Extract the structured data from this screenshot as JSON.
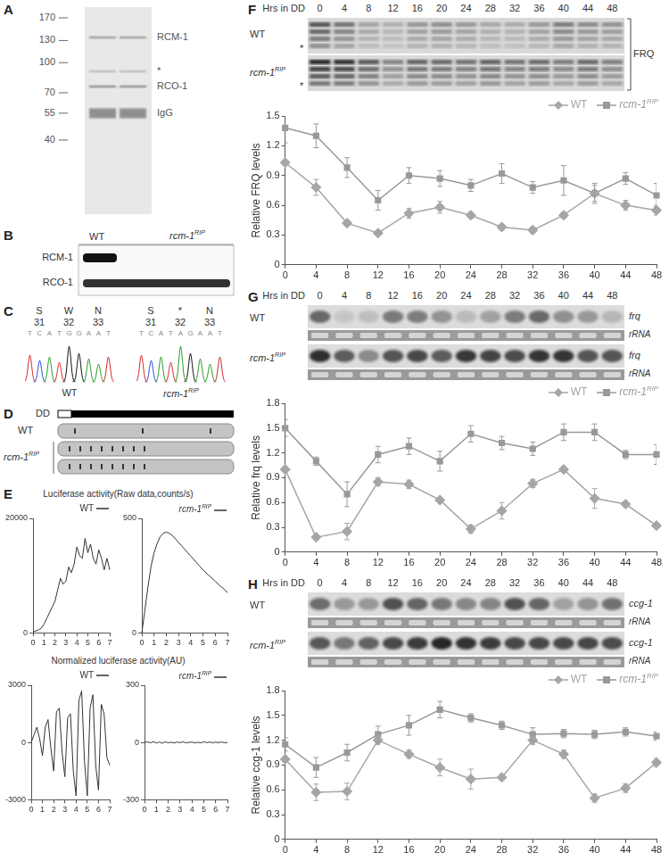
{
  "panels": {
    "A": {
      "label": "A",
      "markers": [
        170,
        130,
        100,
        70,
        55,
        40
      ],
      "bands": [
        "RCM-1",
        "*",
        "RCO-1",
        "IgG"
      ]
    },
    "B": {
      "label": "B",
      "columns": [
        {
          "text": "WT"
        },
        {
          "text": "rcm-1",
          "sup": "RIP"
        }
      ],
      "rows": [
        "RCM-1",
        "RCO-1"
      ]
    },
    "C": {
      "label": "C",
      "traces": [
        {
          "residues": [
            "S",
            "W",
            "N"
          ],
          "positions": [
            31,
            32,
            33
          ],
          "bases": "TCATGGAAT",
          "strain": {
            "text": "WT"
          }
        },
        {
          "residues": [
            "S",
            "*",
            "N"
          ],
          "positions": [
            31,
            32,
            33
          ],
          "bases": "TCATAGAAT",
          "strain": {
            "text": "rcm-1",
            "sup": "RIP"
          }
        }
      ]
    },
    "D": {
      "label": "D",
      "condition": "DD",
      "strains": [
        {
          "text": "WT"
        },
        {
          "text": "rcm-1",
          "sup": "RIP"
        }
      ]
    },
    "E": {
      "label": "E",
      "titles": [
        "Luciferase activity(Raw data,counts/s)",
        "Normalized luciferase activity(AU)"
      ]
    },
    "F": {
      "label": "F",
      "blot": {
        "header": "Hrs in DD",
        "lanes": [
          0,
          4,
          8,
          12,
          16,
          20,
          24,
          28,
          32,
          36,
          40,
          44,
          48
        ],
        "rows": [
          {
            "text": "WT"
          },
          {
            "text": "rcm-1",
            "sup": "RIP"
          }
        ],
        "marker": "*",
        "probe": "FRQ"
      }
    },
    "G": {
      "label": "G",
      "blot": {
        "header": "Hrs in DD",
        "lanes": [
          0,
          4,
          8,
          12,
          16,
          20,
          24,
          28,
          32,
          36,
          40,
          44,
          48
        ],
        "rows": [
          {
            "text": "WT"
          },
          {
            "text": "rcm-1",
            "sup": "RIP"
          }
        ],
        "probe": "frq",
        "loading": "rRNA"
      }
    },
    "H": {
      "label": "H",
      "blot": {
        "header": "Hrs in DD",
        "lanes": [
          0,
          4,
          8,
          12,
          16,
          20,
          24,
          28,
          32,
          36,
          40,
          44,
          48
        ],
        "rows": [
          {
            "text": "WT"
          },
          {
            "text": "rcm-1",
            "sup": "RIP"
          }
        ],
        "probe": "ccg-1",
        "loading": "rRNA"
      }
    }
  },
  "chart_data": [
    {
      "type": "line",
      "legend": "top",
      "grid": false,
      "x": [
        0,
        0.25,
        0.5,
        0.75,
        1,
        1.25,
        1.5,
        1.75,
        2,
        2.25,
        2.5,
        2.75,
        3,
        3.25,
        3.5,
        3.75,
        4,
        4.25,
        4.5,
        4.75,
        5,
        5.25,
        5.5,
        5.75,
        6,
        6.25,
        6.5,
        6.75,
        7
      ],
      "series": [
        {
          "name": "WT",
          "color": "#333333",
          "values": [
            200,
            300,
            500,
            800,
            1500,
            2500,
            3500,
            4500,
            5500,
            7500,
            9500,
            8500,
            9000,
            11500,
            10500,
            12000,
            15000,
            13500,
            13000,
            16500,
            14000,
            15500,
            13000,
            12000,
            14500,
            13000,
            11000,
            13000,
            11000
          ]
        }
      ],
      "xlim": [
        0,
        7
      ],
      "xticks": [
        0,
        1,
        2,
        3,
        4,
        5,
        6,
        7
      ],
      "ylim": [
        0,
        20000
      ],
      "yticks": [
        0,
        20000
      ]
    },
    {
      "type": "line",
      "legend": "top",
      "grid": false,
      "x": [
        0,
        0.25,
        0.5,
        0.75,
        1,
        1.25,
        1.5,
        1.75,
        2,
        2.25,
        2.5,
        2.75,
        3,
        3.25,
        3.5,
        3.75,
        4,
        4.25,
        4.5,
        4.75,
        5,
        5.25,
        5.5,
        5.75,
        6,
        6.25,
        6.5,
        6.75,
        7
      ],
      "series": [
        {
          "name": "rcm-1",
          "name_sup": "RIP",
          "color": "#333333",
          "values": [
            0,
            100,
            200,
            290,
            350,
            390,
            420,
            435,
            440,
            435,
            425,
            410,
            395,
            380,
            365,
            350,
            335,
            320,
            305,
            290,
            275,
            262,
            250,
            238,
            225,
            213,
            200,
            190,
            175
          ]
        }
      ],
      "xlim": [
        0,
        7
      ],
      "xticks": [
        0,
        1,
        2,
        3,
        4,
        5,
        6,
        7
      ],
      "ylim": [
        0,
        500
      ],
      "yticks": [
        0,
        500
      ]
    },
    {
      "type": "line",
      "legend": "top",
      "grid": false,
      "x": [
        0,
        0.25,
        0.5,
        0.75,
        1,
        1.25,
        1.5,
        1.75,
        2,
        2.25,
        2.5,
        2.75,
        3,
        3.25,
        3.5,
        3.75,
        4,
        4.25,
        4.5,
        4.75,
        5,
        5.25,
        5.5,
        5.75,
        6,
        6.25,
        6.5,
        6.75,
        7
      ],
      "series": [
        {
          "name": "WT",
          "color": "#333333",
          "values": [
            0,
            400,
            800,
            200,
            -700,
            800,
            1200,
            -300,
            -1500,
            1600,
            1800,
            -500,
            -1800,
            1300,
            1500,
            -1500,
            -2800,
            2200,
            2700,
            -1000,
            -2800,
            1800,
            2500,
            -1200,
            -2500,
            2000,
            1500,
            -800,
            -1200
          ]
        }
      ],
      "xlim": [
        0,
        7
      ],
      "xticks": [
        0,
        1,
        2,
        3,
        4,
        5,
        6,
        7
      ],
      "ylim": [
        -3000,
        3000
      ],
      "yticks": [
        -3000,
        0,
        3000
      ]
    },
    {
      "type": "line",
      "legend": "top",
      "grid": false,
      "x": [
        0,
        0.25,
        0.5,
        0.75,
        1,
        1.25,
        1.5,
        1.75,
        2,
        2.25,
        2.5,
        2.75,
        3,
        3.25,
        3.5,
        3.75,
        4,
        4.25,
        4.5,
        4.75,
        5,
        5.25,
        5.5,
        5.75,
        6,
        6.25,
        6.5,
        6.75,
        7
      ],
      "series": [
        {
          "name": "rcm-1",
          "name_sup": "RIP",
          "color": "#333333",
          "values": [
            0,
            3,
            -2,
            4,
            -3,
            2,
            -4,
            3,
            -2,
            1,
            -3,
            2,
            -1,
            3,
            -2,
            0,
            2,
            -3,
            1,
            -2,
            3,
            -1,
            2,
            -2,
            1,
            -1,
            2,
            -2,
            0
          ]
        }
      ],
      "xlim": [
        0,
        7
      ],
      "xticks": [
        0,
        1,
        2,
        3,
        4,
        5,
        6,
        7
      ],
      "ylim": [
        -300,
        300
      ],
      "yticks": [
        -300,
        0,
        300
      ]
    },
    {
      "type": "line",
      "legend": "top",
      "grid": false,
      "y_label": "Relative FRQ levels",
      "x": [
        0,
        4,
        8,
        12,
        16,
        20,
        24,
        28,
        32,
        36,
        40,
        44,
        48
      ],
      "series": [
        {
          "name": "WT",
          "color": "#a6a6a6",
          "marker": "diamond",
          "values": [
            1.03,
            0.78,
            0.42,
            0.32,
            0.52,
            0.58,
            0.5,
            0.38,
            0.35,
            0.5,
            0.72,
            0.6,
            0.55
          ],
          "errors": [
            0,
            0.08,
            0.03,
            0.02,
            0.05,
            0.06,
            0.03,
            0.03,
            0.03,
            0.03,
            0.08,
            0.05,
            0.05
          ]
        },
        {
          "name": "rcm-1",
          "name_sup": "RIP",
          "color": "#999999",
          "marker": "square",
          "values": [
            1.38,
            1.3,
            0.98,
            0.65,
            0.9,
            0.87,
            0.8,
            0.92,
            0.78,
            0.85,
            0.72,
            0.87,
            0.7
          ],
          "errors": [
            0.15,
            0.12,
            0.1,
            0.1,
            0.08,
            0.08,
            0.06,
            0.1,
            0.06,
            0.15,
            0.1,
            0.06,
            0.12
          ]
        }
      ],
      "xlim": [
        0,
        48
      ],
      "xticks": [
        0,
        4,
        8,
        12,
        16,
        20,
        24,
        28,
        32,
        36,
        40,
        44,
        48
      ],
      "ylim": [
        0,
        1.5
      ],
      "yticks": [
        0,
        0.3,
        0.6,
        0.9,
        1.2,
        1.5
      ]
    },
    {
      "type": "line",
      "legend": "top",
      "grid": false,
      "y_label": "Relative frq levels",
      "x": [
        0,
        4,
        8,
        12,
        16,
        20,
        24,
        28,
        32,
        36,
        40,
        44,
        48
      ],
      "series": [
        {
          "name": "WT",
          "color": "#a6a6a6",
          "marker": "diamond",
          "values": [
            1.0,
            0.18,
            0.25,
            0.85,
            0.82,
            0.63,
            0.28,
            0.5,
            0.83,
            1.0,
            0.65,
            0.58,
            0.32
          ],
          "errors": [
            0,
            0.03,
            0.1,
            0.05,
            0.05,
            0.03,
            0.05,
            0.1,
            0.05,
            0.03,
            0.12,
            0.03,
            0.03
          ]
        },
        {
          "name": "rcm-1",
          "name_sup": "RIP",
          "color": "#999999",
          "marker": "square",
          "values": [
            1.5,
            1.1,
            0.7,
            1.18,
            1.28,
            1.1,
            1.43,
            1.32,
            1.25,
            1.45,
            1.45,
            1.18,
            1.18
          ],
          "errors": [
            0.1,
            0.05,
            0.15,
            0.1,
            0.1,
            0.12,
            0.1,
            0.08,
            0.08,
            0.1,
            0.1,
            0.05,
            0.12
          ]
        }
      ],
      "xlim": [
        0,
        48
      ],
      "xticks": [
        0,
        4,
        8,
        12,
        16,
        20,
        24,
        28,
        32,
        36,
        40,
        44,
        48
      ],
      "ylim": [
        0,
        1.8
      ],
      "yticks": [
        0,
        0.3,
        0.6,
        0.9,
        1.2,
        1.5,
        1.8
      ]
    },
    {
      "type": "line",
      "legend": "top",
      "grid": false,
      "y_label": "Relative ccg-1 levels",
      "x": [
        0,
        4,
        8,
        12,
        16,
        20,
        24,
        28,
        32,
        36,
        40,
        44,
        48
      ],
      "series": [
        {
          "name": "WT",
          "color": "#a6a6a6",
          "marker": "diamond",
          "values": [
            0.97,
            0.57,
            0.58,
            1.2,
            1.03,
            0.87,
            0.73,
            0.75,
            1.2,
            1.03,
            0.5,
            0.62,
            0.93
          ],
          "errors": [
            0,
            0.1,
            0.1,
            0.05,
            0.05,
            0.1,
            0.12,
            0.03,
            0.05,
            0.05,
            0.05,
            0.05,
            0.05
          ]
        },
        {
          "name": "rcm-1",
          "name_sup": "RIP",
          "color": "#999999",
          "marker": "square",
          "values": [
            1.15,
            0.87,
            1.05,
            1.27,
            1.38,
            1.57,
            1.47,
            1.38,
            1.27,
            1.28,
            1.27,
            1.3,
            1.25
          ],
          "errors": [
            0.08,
            0.12,
            0.1,
            0.1,
            0.12,
            0.1,
            0.05,
            0.05,
            0.08,
            0.05,
            0.05,
            0.05,
            0.05
          ]
        }
      ],
      "xlim": [
        0,
        48
      ],
      "xticks": [
        0,
        4,
        8,
        12,
        16,
        20,
        24,
        28,
        32,
        36,
        40,
        44,
        48
      ],
      "ylim": [
        0,
        1.8
      ],
      "yticks": [
        0,
        0.3,
        0.6,
        0.9,
        1.2,
        1.5,
        1.8
      ]
    }
  ]
}
